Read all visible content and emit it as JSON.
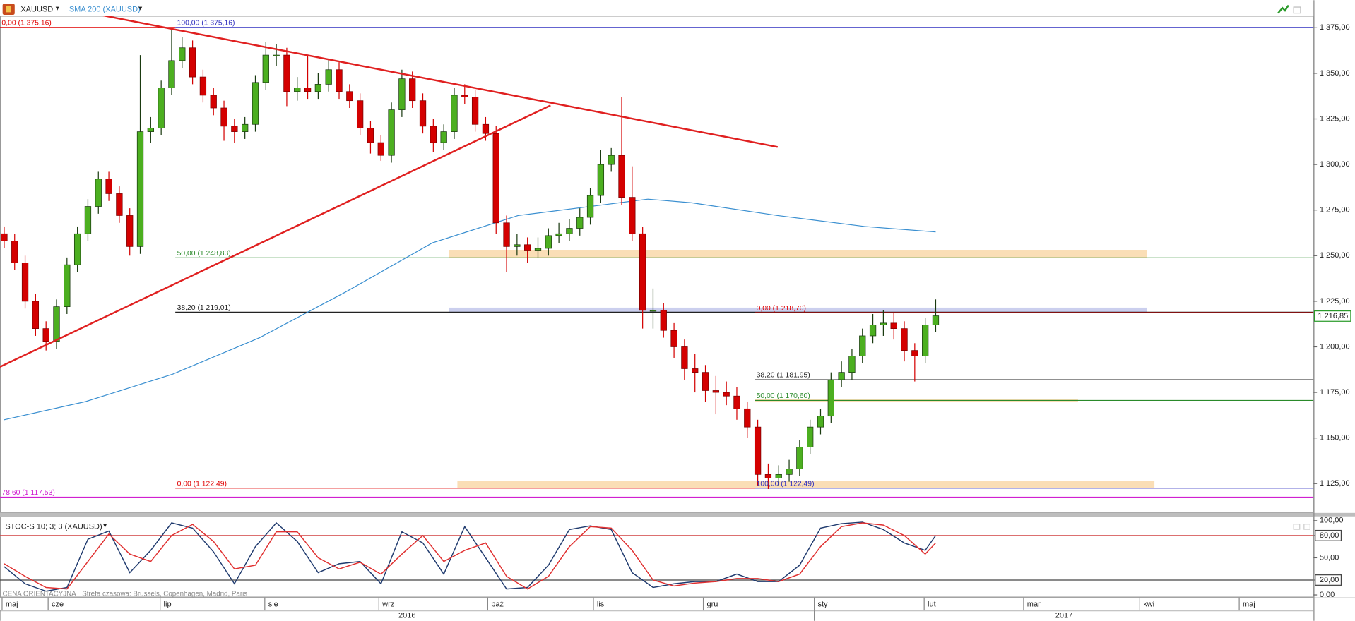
{
  "chart_data": [
    {
      "type": "candlestick",
      "title": "XAUUSD",
      "up_color": "#4caf20",
      "down_color": "#d40000",
      "open": [
        1262,
        1258,
        1246,
        1225,
        1210,
        1203,
        1222,
        1245,
        1262,
        1277,
        1292,
        1284,
        1272,
        1255,
        1318,
        1320,
        1342,
        1357,
        1364,
        1348,
        1338,
        1331,
        1321,
        1318,
        1322,
        1345,
        1360,
        1360,
        1340,
        1342,
        1340,
        1344,
        1352,
        1340,
        1335,
        1320,
        1312,
        1305,
        1330,
        1347,
        1335,
        1321,
        1312,
        1318,
        1338,
        1337,
        1322,
        1317,
        1268,
        1255,
        1256,
        1253,
        1254,
        1261,
        1262,
        1265,
        1271,
        1283,
        1300,
        1305,
        1282,
        1262,
        1220,
        1220,
        1209,
        1200,
        1188,
        1186,
        1176,
        1175,
        1173,
        1166,
        1156,
        1130,
        1128,
        1130,
        1133,
        1145,
        1156,
        1162,
        1182,
        1186,
        1195,
        1206,
        1212,
        1213,
        1210,
        1198,
        1195,
        1212
      ],
      "high": [
        1266,
        1262,
        1250,
        1229,
        1214,
        1226,
        1249,
        1266,
        1281,
        1296,
        1296,
        1288,
        1276,
        1360,
        1326,
        1346,
        1375,
        1370,
        1368,
        1352,
        1342,
        1335,
        1325,
        1326,
        1349,
        1367,
        1366,
        1364,
        1348,
        1360,
        1350,
        1358,
        1356,
        1344,
        1339,
        1324,
        1316,
        1334,
        1352,
        1351,
        1339,
        1325,
        1322,
        1342,
        1344,
        1341,
        1326,
        1321,
        1272,
        1262,
        1260,
        1260,
        1265,
        1268,
        1270,
        1276,
        1287,
        1308,
        1309,
        1337,
        1299,
        1266,
        1232,
        1224,
        1213,
        1204,
        1196,
        1190,
        1184,
        1181,
        1178,
        1170,
        1160,
        1136,
        1135,
        1138,
        1149,
        1160,
        1166,
        1186,
        1192,
        1199,
        1210,
        1218,
        1220,
        1219,
        1214,
        1202,
        1216,
        1226
      ],
      "low": [
        1254,
        1242,
        1221,
        1206,
        1198,
        1199,
        1218,
        1241,
        1258,
        1273,
        1280,
        1268,
        1250,
        1251,
        1312,
        1316,
        1338,
        1353,
        1344,
        1334,
        1327,
        1313,
        1312,
        1314,
        1318,
        1341,
        1354,
        1332,
        1335,
        1336,
        1336,
        1340,
        1336,
        1331,
        1316,
        1306,
        1302,
        1301,
        1326,
        1331,
        1317,
        1307,
        1308,
        1314,
        1333,
        1318,
        1313,
        1262,
        1241,
        1250,
        1246,
        1249,
        1250,
        1257,
        1258,
        1261,
        1267,
        1279,
        1296,
        1278,
        1258,
        1210,
        1210,
        1205,
        1194,
        1182,
        1175,
        1170,
        1163,
        1168,
        1160,
        1150,
        1124,
        1122,
        1124,
        1126,
        1129,
        1141,
        1152,
        1158,
        1178,
        1182,
        1191,
        1202,
        1206,
        1204,
        1192,
        1181,
        1191,
        1208
      ],
      "close": [
        1258,
        1246,
        1225,
        1210,
        1203,
        1222,
        1245,
        1262,
        1277,
        1292,
        1284,
        1272,
        1255,
        1318,
        1320,
        1342,
        1357,
        1364,
        1348,
        1338,
        1331,
        1321,
        1318,
        1322,
        1345,
        1360,
        1360,
        1340,
        1342,
        1340,
        1344,
        1352,
        1340,
        1335,
        1320,
        1312,
        1305,
        1330,
        1347,
        1335,
        1321,
        1312,
        1318,
        1338,
        1337,
        1322,
        1317,
        1268,
        1255,
        1256,
        1253,
        1254,
        1261,
        1262,
        1265,
        1271,
        1283,
        1300,
        1305,
        1282,
        1262,
        1220,
        1220,
        1209,
        1200,
        1188,
        1186,
        1176,
        1175,
        1173,
        1166,
        1156,
        1130,
        1128,
        1130,
        1133,
        1145,
        1156,
        1162,
        1182,
        1186,
        1195,
        1206,
        1212,
        1213,
        1210,
        1198,
        1195,
        1212,
        1217
      ],
      "sma": {
        "name": "SMA 200 (XAUUSD)",
        "color": "#3a8fd0",
        "x": [
          0,
          7.8,
          16.1,
          24.4,
          32.6,
          40.9,
          49.1,
          57.4,
          61.5,
          65.7,
          73.9,
          82.2,
          89
        ],
        "values": [
          1160,
          1170,
          1185,
          1205,
          1230,
          1257,
          1272,
          1278,
          1281,
          1279,
          1272,
          1266,
          1263
        ]
      },
      "levels": [
        {
          "label": "0,00 (1 375,16)",
          "value": 1375.16,
          "color": "#e00000",
          "x": [
            -0.4,
            16.35
          ]
        },
        {
          "label": "100,00 (1 375,16)",
          "value": 1375.16,
          "color": "#3030c0",
          "x": [
            16.35,
            125.1
          ]
        },
        {
          "label": "50,00 (1 248,83)",
          "value": 1248.83,
          "color": "#2a8a2a",
          "x": [
            16.35,
            125.1
          ]
        },
        {
          "label": "38,20 (1 219,01)",
          "value": 1219.01,
          "color": "#222222",
          "x": [
            16.35,
            125.1
          ]
        },
        {
          "label": "0,00 (1 122,49)",
          "value": 1122.49,
          "color": "#e00000",
          "x": [
            16.35,
            71.7
          ]
        },
        {
          "label": "78,60 (1 117,53)",
          "value": 1117.53,
          "color": "#d020d0",
          "x": [
            -0.4,
            125.1
          ]
        },
        {
          "label": "0,00 (1 218,70)",
          "value": 1218.7,
          "color": "#e00000",
          "x": [
            71.7,
            125.1
          ]
        },
        {
          "label": "38,20 (1 181,95)",
          "value": 1181.95,
          "color": "#222222",
          "x": [
            71.7,
            125.1
          ]
        },
        {
          "label": "50,00 (1 170,60)",
          "value": 1170.6,
          "color": "#2a8a2a",
          "x": [
            71.7,
            125.1
          ]
        },
        {
          "label": "100,00 (1 122,49)",
          "value": 1122.49,
          "color": "#3030c0",
          "x": [
            71.7,
            125.1
          ]
        }
      ],
      "zones": [
        {
          "x": [
            42.5,
            109.2
          ],
          "y": [
            1248.8,
            1253.2
          ],
          "color": "#f5c27a"
        },
        {
          "x": [
            42.5,
            109.2
          ],
          "y": [
            1218.7,
            1221.5
          ],
          "color": "#a0a8e0"
        },
        {
          "x": [
            71.7,
            102.6
          ],
          "y": [
            1169.6,
            1171.5
          ],
          "color": "#f5c27a"
        },
        {
          "x": [
            43.3,
            109.9
          ],
          "y": [
            1122.5,
            1126.3
          ],
          "color": "#f5c27a"
        }
      ],
      "trendlines": [
        {
          "x": [
            7.43,
            73.9
          ],
          "y": [
            1384,
            1309.6
          ],
          "color": "#e02020"
        },
        {
          "x": [
            -0.41,
            52.2
          ],
          "y": [
            1189,
            1332.4
          ],
          "color": "#e02020"
        }
      ],
      "last_price": {
        "value": 1216.85,
        "label": "1 216,85"
      },
      "xlim": [
        -0.4,
        125.1
      ],
      "ylim": [
        1108.9,
        1381.6
      ],
      "yticks": [
        {
          "value": 1125,
          "label": "1 125,00"
        },
        {
          "value": 1150,
          "label": "1 150,00"
        },
        {
          "value": 1175,
          "label": "1 175,00"
        },
        {
          "value": 1200,
          "label": "1 200,00"
        },
        {
          "value": 1225,
          "label": "1 225,00"
        },
        {
          "value": 1250,
          "label": "1 250,00"
        },
        {
          "value": 1275,
          "label": "1 275,00"
        },
        {
          "value": 1300,
          "label": "1 300,00"
        },
        {
          "value": 1325,
          "label": "1 325,00"
        },
        {
          "value": 1350,
          "label": "1 350,00"
        },
        {
          "value": 1375,
          "label": "1 375,00"
        }
      ],
      "xticks": [
        {
          "value": -0.2,
          "label": "maj"
        },
        {
          "value": 4.2,
          "label": "cze"
        },
        {
          "value": 14.9,
          "label": "lip"
        },
        {
          "value": 24.9,
          "label": "sie"
        },
        {
          "value": 35.8,
          "label": "wrz"
        },
        {
          "value": 46.2,
          "label": "paź"
        },
        {
          "value": 56.3,
          "label": "lis"
        },
        {
          "value": 66.8,
          "label": "gru"
        },
        {
          "value": 77.4,
          "label": "sty"
        },
        {
          "value": 87.9,
          "label": "lut"
        },
        {
          "value": 97.4,
          "label": "mar"
        },
        {
          "value": 108.5,
          "label": "kwi"
        },
        {
          "value": 118.0,
          "label": "maj"
        }
      ],
      "years": [
        {
          "value": -0.4,
          "label": "2016"
        },
        {
          "value": 77.4,
          "label": "2017"
        }
      ]
    },
    {
      "type": "line",
      "title": "STOC-S 10; 3; 3 (XAUUSD)",
      "x": [
        0,
        2,
        4,
        6,
        8,
        10,
        12,
        14,
        16,
        18,
        20,
        22,
        24,
        26,
        28,
        30,
        32,
        34,
        36,
        38,
        40,
        42,
        44,
        46,
        48,
        50,
        52,
        54,
        56,
        58,
        60,
        62,
        64,
        66,
        68,
        70,
        72,
        74,
        76,
        78,
        80,
        82,
        84,
        86,
        88,
        89
      ],
      "series": [
        {
          "color": "#1f3a6e",
          "values": [
            38,
            15,
            5,
            10,
            75,
            86,
            30,
            60,
            97,
            90,
            58,
            15,
            65,
            97,
            72,
            30,
            42,
            45,
            15,
            85,
            70,
            28,
            92,
            50,
            8,
            10,
            40,
            88,
            93,
            88,
            30,
            10,
            15,
            18,
            18,
            28,
            18,
            18,
            40,
            90,
            96,
            98,
            88,
            70,
            60,
            80
          ]
        },
        {
          "color": "#e03030",
          "values": [
            42,
            25,
            10,
            8,
            45,
            82,
            55,
            45,
            80,
            95,
            72,
            35,
            40,
            85,
            85,
            50,
            35,
            44,
            28,
            55,
            80,
            45,
            60,
            70,
            25,
            8,
            25,
            65,
            92,
            90,
            60,
            20,
            12,
            16,
            18,
            22,
            22,
            18,
            28,
            65,
            92,
            97,
            94,
            80,
            55,
            70
          ]
        }
      ],
      "levels": [
        {
          "value": 80,
          "color": "#d04040"
        },
        {
          "value": 20,
          "color": "#444444"
        }
      ],
      "xlim": [
        -0.4,
        125.1
      ],
      "ylim": [
        -3.5,
        105.8
      ],
      "yticks": [
        {
          "value": 0,
          "label": "0,00"
        },
        {
          "value": 20,
          "label": "20,00"
        },
        {
          "value": 50,
          "label": "50,00"
        },
        {
          "value": 80,
          "label": "80,00"
        },
        {
          "value": 100,
          "label": "100,00"
        }
      ]
    }
  ],
  "footer": {
    "price_type": "CENA ORIENTACYJNA",
    "timezone": "Strefa czasowa: Brussels, Copenhagen, Madrid, Paris"
  }
}
